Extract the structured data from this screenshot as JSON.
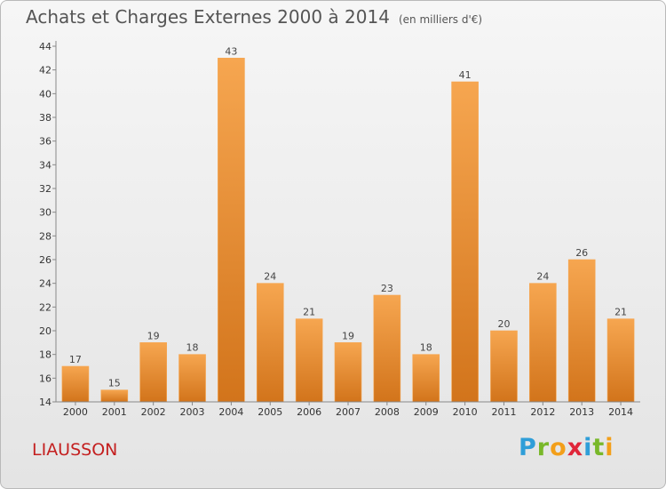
{
  "header": {
    "title": "Achats et Charges Externes 2000 à 2014",
    "unit": "(en milliers d'€)"
  },
  "footer": {
    "commune": "LIAUSSON",
    "logo": "Proxiti"
  },
  "colors": {
    "bar_light": "#f6a650",
    "bar_dark": "#d2741b",
    "commune": "#c42020",
    "logo_letters": [
      "#2f9ed8",
      "#79b82a",
      "#f39f1a",
      "#e0263a",
      "#2f9ed8",
      "#79b82a",
      "#f39f1a"
    ]
  },
  "chart_data": {
    "type": "bar",
    "title": "Achats et Charges Externes 2000 à 2014",
    "ylabel": "",
    "xlabel": "",
    "categories": [
      "2000",
      "2001",
      "2002",
      "2003",
      "2004",
      "2005",
      "2006",
      "2007",
      "2008",
      "2009",
      "2010",
      "2011",
      "2012",
      "2013",
      "2014"
    ],
    "values": [
      17,
      15,
      19,
      18,
      43,
      24,
      21,
      19,
      23,
      18,
      41,
      20,
      24,
      26,
      21
    ],
    "ylim": [
      14,
      44
    ],
    "yticks": [
      14,
      16,
      18,
      20,
      22,
      24,
      26,
      28,
      30,
      32,
      34,
      36,
      38,
      40,
      42,
      44
    ],
    "grid": false,
    "legend": "none"
  }
}
